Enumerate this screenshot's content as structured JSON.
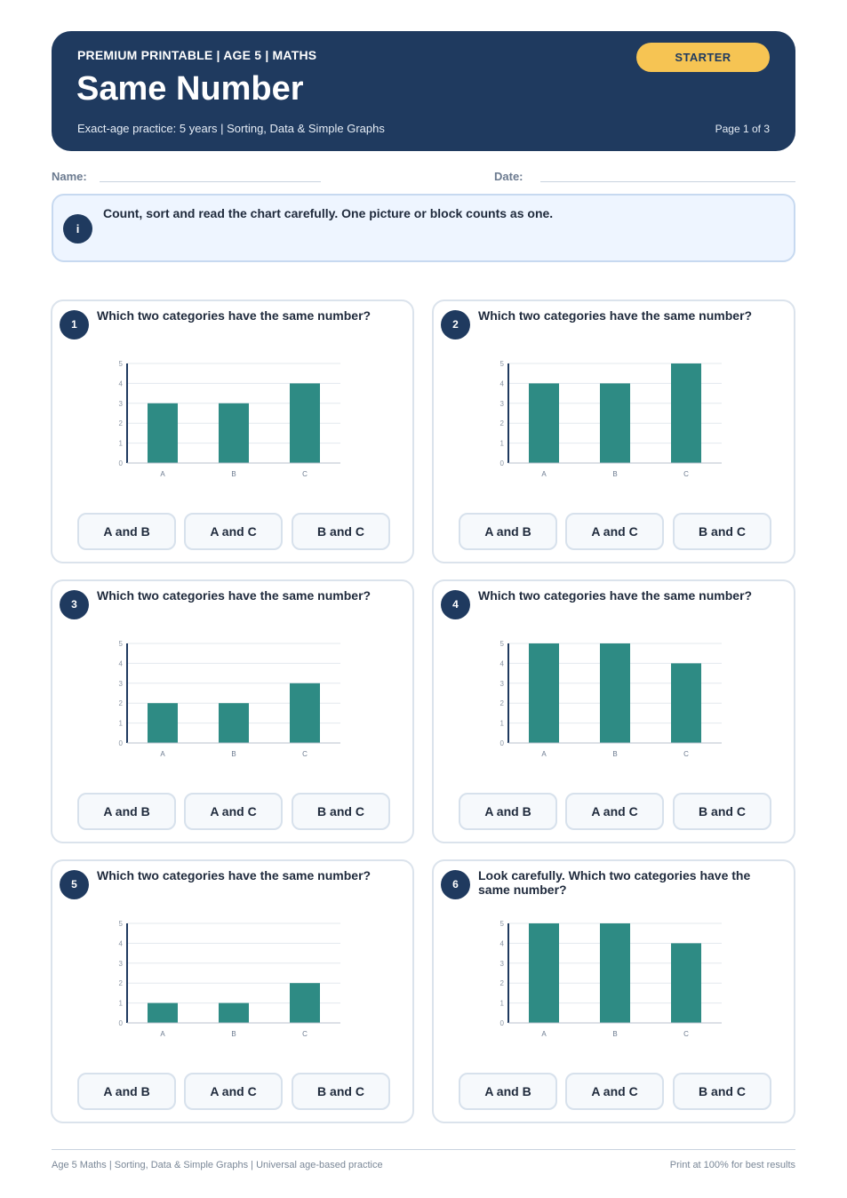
{
  "header": {
    "kicker": "PREMIUM PRINTABLE | AGE 5 | MATHS",
    "title": "Same Number",
    "subtitle": "Exact-age practice: 5 years | Sorting, Data & Simple Graphs",
    "page": "Page 1 of 3",
    "badge": "STARTER"
  },
  "fields": {
    "name_label": "Name:",
    "date_label": "Date:"
  },
  "info": {
    "icon": "i",
    "text": "Count, sort and read the chart carefully. One picture or block counts as one."
  },
  "colors": {
    "navy": "#1f3a5f",
    "bar": "#2e8b84",
    "badge": "#f6c453"
  },
  "questions": [
    {
      "number": "1",
      "text": "Which two categories have the same number?",
      "options": [
        "A and B",
        "A and C",
        "B and C"
      ],
      "chart_data": {
        "type": "bar",
        "categories": [
          "A",
          "B",
          "C"
        ],
        "values": [
          3,
          3,
          4
        ],
        "yticks": [
          "0",
          "1",
          "2",
          "3",
          "4",
          "5"
        ],
        "ylim": [
          0,
          5
        ]
      }
    },
    {
      "number": "2",
      "text": "Which two categories have the same number?",
      "options": [
        "A and B",
        "A and C",
        "B and C"
      ],
      "chart_data": {
        "type": "bar",
        "categories": [
          "A",
          "B",
          "C"
        ],
        "values": [
          4,
          4,
          5
        ],
        "yticks": [
          "0",
          "1",
          "2",
          "3",
          "4",
          "5"
        ],
        "ylim": [
          0,
          5
        ]
      }
    },
    {
      "number": "3",
      "text": "Which two categories have the same number?",
      "options": [
        "A and B",
        "A and C",
        "B and C"
      ],
      "chart_data": {
        "type": "bar",
        "categories": [
          "A",
          "B",
          "C"
        ],
        "values": [
          2,
          2,
          3
        ],
        "yticks": [
          "0",
          "1",
          "2",
          "3",
          "4",
          "5"
        ],
        "ylim": [
          0,
          5
        ]
      }
    },
    {
      "number": "4",
      "text": "Which two categories have the same number?",
      "options": [
        "A and B",
        "A and C",
        "B and C"
      ],
      "chart_data": {
        "type": "bar",
        "categories": [
          "A",
          "B",
          "C"
        ],
        "values": [
          5,
          5,
          4
        ],
        "yticks": [
          "0",
          "1",
          "2",
          "3",
          "4",
          "5"
        ],
        "ylim": [
          0,
          5
        ]
      }
    },
    {
      "number": "5",
      "text": "Which two categories have the same number?",
      "options": [
        "A and B",
        "A and C",
        "B and C"
      ],
      "chart_data": {
        "type": "bar",
        "categories": [
          "A",
          "B",
          "C"
        ],
        "values": [
          1,
          1,
          2
        ],
        "yticks": [
          "0",
          "1",
          "2",
          "3",
          "4",
          "5"
        ],
        "ylim": [
          0,
          5
        ]
      }
    },
    {
      "number": "6",
      "text": "Look carefully. Which two categories have the same number?",
      "options": [
        "A and B",
        "A and C",
        "B and C"
      ],
      "chart_data": {
        "type": "bar",
        "categories": [
          "A",
          "B",
          "C"
        ],
        "values": [
          5,
          5,
          4
        ],
        "yticks": [
          "0",
          "1",
          "2",
          "3",
          "4",
          "5"
        ],
        "ylim": [
          0,
          5
        ]
      }
    }
  ],
  "footer": {
    "left": "Age 5 Maths | Sorting, Data & Simple Graphs | Universal age-based practice",
    "right": "Print at 100% for best results"
  }
}
